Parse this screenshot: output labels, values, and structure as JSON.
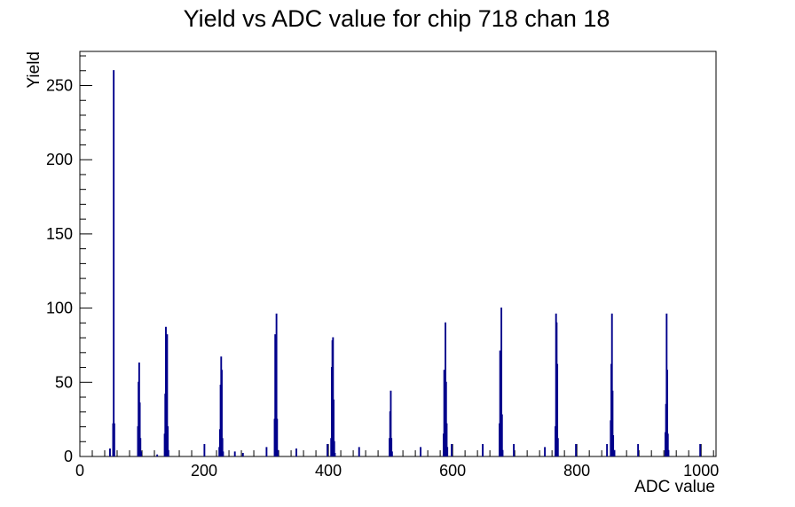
{
  "chart_data": {
    "type": "bar",
    "title": "Yield vs ADC value for chip 718 chan 18",
    "xlabel": "ADC value",
    "ylabel": "Yield",
    "xlim": [
      0,
      1024
    ],
    "ylim": [
      0,
      273
    ],
    "x_ticks": [
      0,
      200,
      400,
      600,
      800,
      1000
    ],
    "y_ticks": [
      0,
      50,
      100,
      150,
      200,
      250
    ],
    "grid": false,
    "color": "#00008b",
    "series": [
      {
        "points": [
          [
            48,
            5
          ],
          [
            53,
            22
          ],
          [
            54,
            260
          ],
          [
            55,
            22
          ],
          [
            93,
            20
          ],
          [
            94,
            50
          ],
          [
            95,
            63
          ],
          [
            96,
            36
          ],
          [
            97,
            12
          ],
          [
            98,
            3
          ],
          [
            124,
            1
          ],
          [
            136,
            15
          ],
          [
            137,
            42
          ],
          [
            138,
            87
          ],
          [
            139,
            58
          ],
          [
            140,
            82
          ],
          [
            141,
            20
          ],
          [
            142,
            4
          ],
          [
            200,
            8
          ],
          [
            224,
            6
          ],
          [
            225,
            18
          ],
          [
            226,
            48
          ],
          [
            227,
            67
          ],
          [
            228,
            58
          ],
          [
            229,
            12
          ],
          [
            230,
            3
          ],
          [
            249,
            3
          ],
          [
            262,
            2
          ],
          [
            300,
            6
          ],
          [
            313,
            25
          ],
          [
            314,
            82
          ],
          [
            315,
            36
          ],
          [
            316,
            96
          ],
          [
            317,
            25
          ],
          [
            318,
            4
          ],
          [
            348,
            5
          ],
          [
            398,
            8
          ],
          [
            404,
            12
          ],
          [
            405,
            60
          ],
          [
            406,
            78
          ],
          [
            407,
            80
          ],
          [
            408,
            38
          ],
          [
            409,
            10
          ],
          [
            410,
            2
          ],
          [
            449,
            6
          ],
          [
            498,
            12
          ],
          [
            499,
            30
          ],
          [
            500,
            44
          ],
          [
            501,
            12
          ],
          [
            502,
            3
          ],
          [
            548,
            6
          ],
          [
            585,
            15
          ],
          [
            586,
            58
          ],
          [
            587,
            40
          ],
          [
            588,
            90
          ],
          [
            589,
            50
          ],
          [
            590,
            22
          ],
          [
            591,
            6
          ],
          [
            598,
            8
          ],
          [
            648,
            8
          ],
          [
            675,
            22
          ],
          [
            676,
            71
          ],
          [
            677,
            71
          ],
          [
            678,
            100
          ],
          [
            679,
            28
          ],
          [
            680,
            4
          ],
          [
            698,
            8
          ],
          [
            748,
            6
          ],
          [
            765,
            20
          ],
          [
            766,
            96
          ],
          [
            767,
            90
          ],
          [
            768,
            62
          ],
          [
            769,
            12
          ],
          [
            798,
            8
          ],
          [
            848,
            8
          ],
          [
            854,
            24
          ],
          [
            855,
            62
          ],
          [
            856,
            96
          ],
          [
            857,
            44
          ],
          [
            858,
            14
          ],
          [
            859,
            3
          ],
          [
            860,
            4
          ],
          [
            898,
            8
          ],
          [
            942,
            16
          ],
          [
            943,
            35
          ],
          [
            944,
            96
          ],
          [
            945,
            58
          ],
          [
            946,
            15
          ],
          [
            947,
            4
          ],
          [
            998,
            8
          ]
        ]
      }
    ]
  }
}
